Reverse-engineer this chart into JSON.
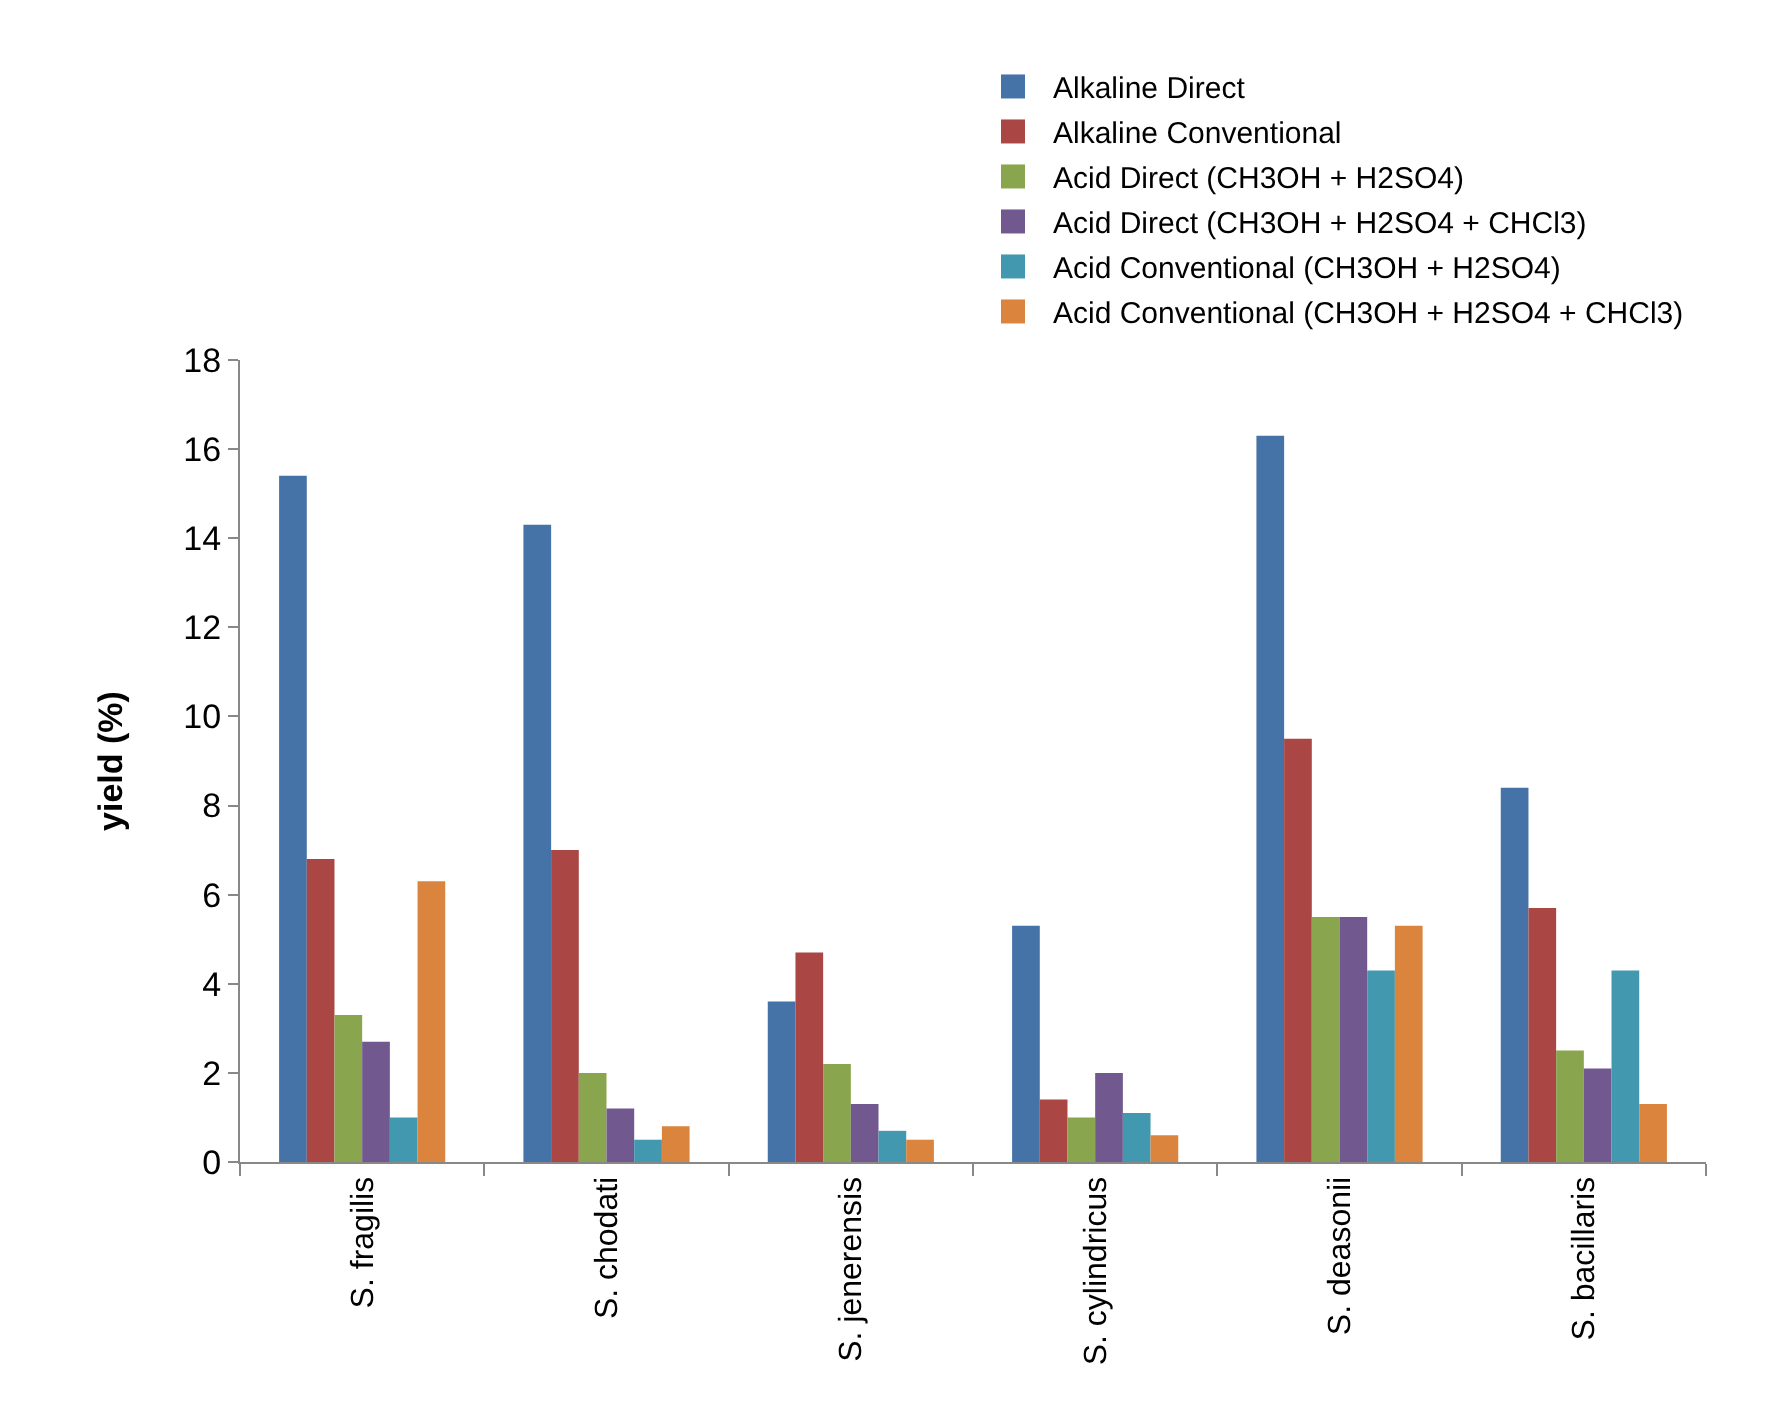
{
  "chart_data": {
    "type": "bar",
    "ylabel": "yield (%)",
    "categories": [
      "S. fragilis",
      "S. chodati",
      "S. jenerensis",
      "S. cylindricus",
      "S. deasonii",
      "S. bacillaris"
    ],
    "series": [
      {
        "name": "Alkaline Direct",
        "color": "#4572a7",
        "values": [
          15.4,
          14.3,
          3.6,
          5.3,
          16.3,
          8.4
        ]
      },
      {
        "name": "Alkaline Conventional",
        "color": "#aa4643",
        "values": [
          6.8,
          7.0,
          4.7,
          1.4,
          9.5,
          5.7
        ]
      },
      {
        "name": "Acid Direct (CH3OH + H2SO4)",
        "color": "#89a54e",
        "values": [
          3.3,
          2.0,
          2.2,
          1.0,
          5.5,
          2.5
        ]
      },
      {
        "name": "Acid Direct (CH3OH + H2SO4 + CHCl3)",
        "color": "#71588f",
        "values": [
          2.7,
          1.2,
          1.3,
          2.0,
          5.5,
          2.1
        ]
      },
      {
        "name": "Acid Conventional (CH3OH + H2SO4)",
        "color": "#4198af",
        "values": [
          1.0,
          0.5,
          0.7,
          1.1,
          4.3,
          4.3
        ]
      },
      {
        "name": "Acid Conventional (CH3OH + H2SO4 + CHCl3)",
        "color": "#db843d",
        "values": [
          6.3,
          0.8,
          0.5,
          0.6,
          5.3,
          1.3
        ]
      }
    ],
    "ylim": [
      0,
      18
    ],
    "yticks": [
      0,
      2,
      4,
      6,
      8,
      10,
      12,
      14,
      16,
      18
    ],
    "grid": false,
    "legend": "top right"
  }
}
